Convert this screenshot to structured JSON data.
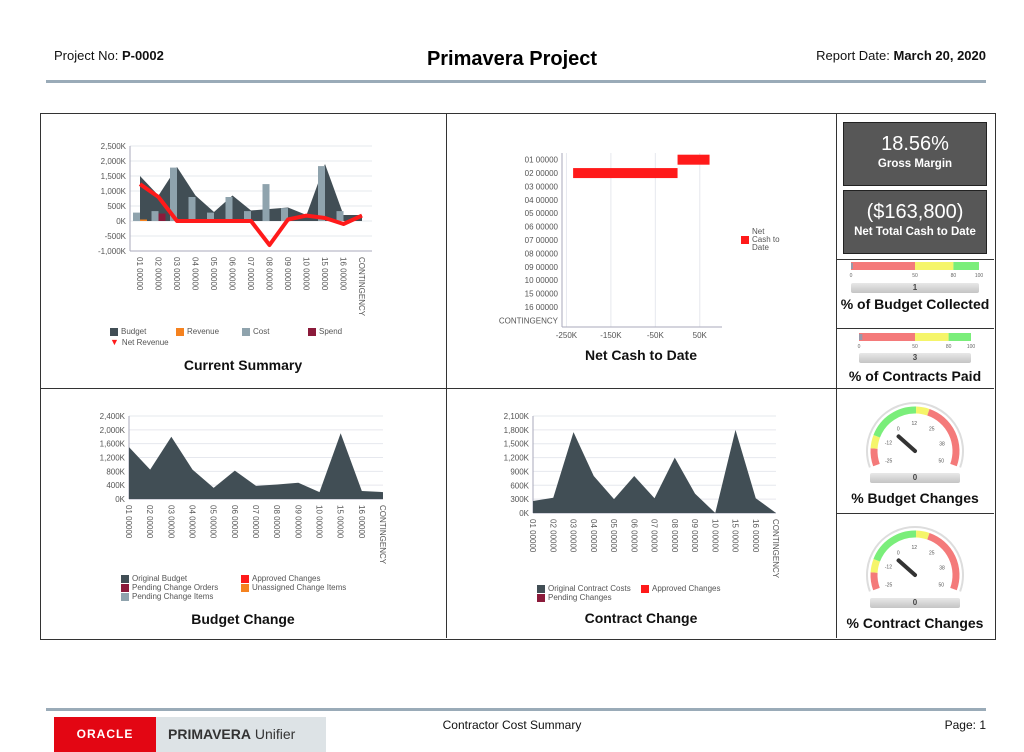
{
  "header": {
    "project_label": "Project No:",
    "project_no": "P-0002",
    "title": "Primavera Project",
    "date_label": "Report Date:",
    "date": "March 20, 2020"
  },
  "footer": {
    "oracle_logo": "ORACLE",
    "product": "PRIMAVERA",
    "product_sub": "Unifier",
    "report_name": "Contractor Cost Summary",
    "page_label": "Page: 1"
  },
  "colors": {
    "dark": "#414e55",
    "cost": "#8fa3ad",
    "revenue": "#f5821f",
    "spend": "#8b1a3a",
    "red": "#ff1a1a",
    "gauge_red": "#f47a7a",
    "gauge_yellow": "#f5f56a",
    "gauge_green": "#7aee7a"
  },
  "categories": [
    "01 00000",
    "02 00000",
    "03 00000",
    "04 00000",
    "05 00000",
    "06 00000",
    "07 00000",
    "08 00000",
    "09 00000",
    "10 00000",
    "15 00000",
    "16 00000",
    "CONTINGENCY"
  ],
  "chart_data": [
    {
      "type": "area+bar+line",
      "title": "Current Summary",
      "ylim": [
        -1000,
        2500
      ],
      "yticks": [
        "2,500K",
        "2,000K",
        "1,500K",
        "1,000K",
        "500K",
        "0K",
        "-500K",
        "-1,000K"
      ],
      "series": [
        {
          "name": "Budget",
          "kind": "area",
          "values": [
            1500,
            850,
            1800,
            850,
            300,
            850,
            350,
            400,
            450,
            200,
            1900,
            200,
            200
          ]
        },
        {
          "name": "Revenue",
          "kind": "bar",
          "values": [
            50,
            0,
            0,
            0,
            0,
            0,
            0,
            0,
            0,
            0,
            0,
            0,
            0
          ]
        },
        {
          "name": "Cost",
          "kind": "bar",
          "values": [
            280,
            330,
            1780,
            800,
            280,
            800,
            330,
            1230,
            430,
            0,
            1830,
            330,
            0
          ]
        },
        {
          "name": "Spend",
          "kind": "bar",
          "values": [
            0,
            250,
            0,
            0,
            0,
            0,
            0,
            0,
            0,
            0,
            0,
            0,
            0
          ]
        },
        {
          "name": "Net Revenue",
          "kind": "line",
          "values": [
            1230,
            800,
            0,
            0,
            0,
            0,
            0,
            -800,
            50,
            180,
            100,
            -100,
            180
          ]
        }
      ]
    },
    {
      "type": "bar-horizontal",
      "title": "Net Cash to Date",
      "xlim": [
        -260,
        100
      ],
      "xticks": [
        "-250K",
        "-150K",
        "-50K",
        "50K"
      ],
      "series": [
        {
          "name": "Net Cash to Date",
          "values": [
            72,
            -235,
            0,
            0,
            0,
            0,
            0,
            0,
            0,
            0,
            0,
            0,
            0
          ]
        }
      ]
    },
    {
      "type": "area",
      "title": "Budget Change",
      "ylim": [
        0,
        2400
      ],
      "yticks": [
        "2,400K",
        "2,000K",
        "1,600K",
        "1,200K",
        "800K",
        "400K",
        "0K"
      ],
      "series": [
        {
          "name": "Original Budget",
          "values": [
            1500,
            850,
            1800,
            850,
            320,
            820,
            380,
            420,
            470,
            200,
            1900,
            230,
            200
          ]
        }
      ],
      "legend": [
        "Original Budget",
        "Approved Changes",
        "Pending Change Orders",
        "Unassigned Change Items",
        "Pending Change Items"
      ]
    },
    {
      "type": "area",
      "title": "Contract Change",
      "ylim": [
        0,
        2100
      ],
      "yticks": [
        "2,100K",
        "1,800K",
        "1,500K",
        "1,200K",
        "900K",
        "600K",
        "300K",
        "0K"
      ],
      "series": [
        {
          "name": "Original Contract Costs",
          "values": [
            260,
            330,
            1750,
            800,
            300,
            800,
            320,
            1200,
            420,
            0,
            1800,
            320,
            0
          ]
        }
      ],
      "legend": [
        "Original Contract Costs",
        "Approved Changes",
        "Pending Changes"
      ]
    }
  ],
  "kpis": [
    {
      "value": "18.56%",
      "label": "Gross Margin"
    },
    {
      "value": "($163,800)",
      "label": "Net Total Cash to Date"
    }
  ],
  "linear_gauges": [
    {
      "title": "% of Budget Collected",
      "value": 1,
      "display": "1",
      "ticks": [
        "0",
        "50",
        "80",
        "100"
      ]
    },
    {
      "title": "% of Contracts Paid",
      "value": 3,
      "display": "3",
      "ticks": [
        "0",
        "50",
        "80",
        "100"
      ]
    }
  ],
  "radial_gauges": [
    {
      "title": "% Budget Changes",
      "value": 0,
      "display": "0",
      "ticks": [
        "-25",
        "-12",
        "0",
        "12",
        "25",
        "38",
        "50"
      ]
    },
    {
      "title": "% Contract Changes",
      "value": 0,
      "display": "0",
      "ticks": [
        "-25",
        "-12",
        "0",
        "12",
        "25",
        "38",
        "50"
      ]
    }
  ]
}
